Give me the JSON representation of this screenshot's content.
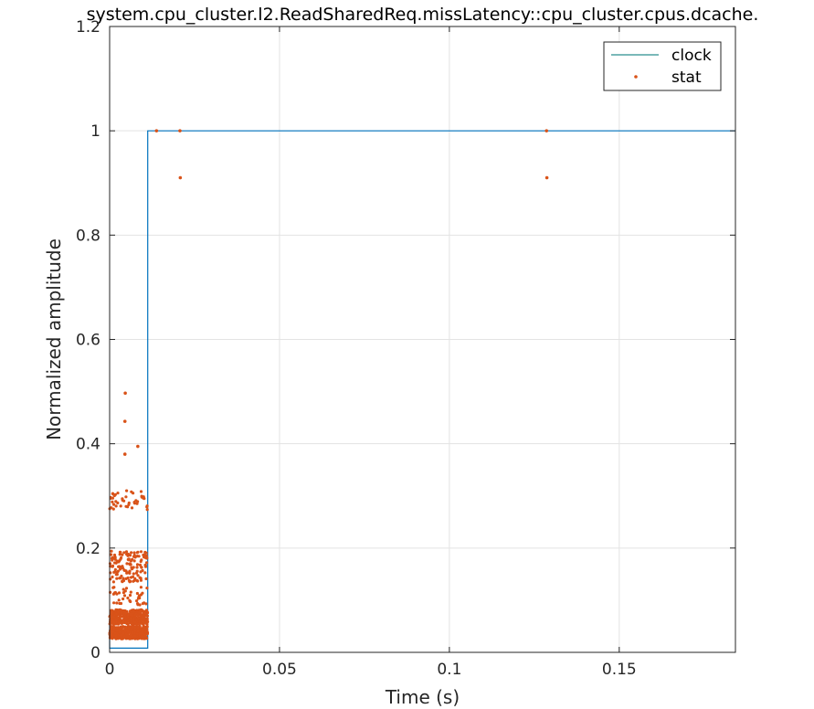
{
  "chart_data": {
    "type": "line",
    "title": "system.cpu_cluster.l2.ReadSharedReq.missLatency::cpu_cluster.cpus.dcache.",
    "xlabel": "Time (s)",
    "ylabel": "Normalized amplitude",
    "xlim": [
      0,
      0.1842
    ],
    "ylim": [
      0,
      1.2
    ],
    "x_ticks": [
      0,
      0.05,
      0.1,
      0.15
    ],
    "x_tick_labels": [
      "0",
      "0.05",
      "0.1",
      "0.15"
    ],
    "y_ticks": [
      0,
      0.2,
      0.4,
      0.6,
      0.8,
      1,
      1.2
    ],
    "y_tick_labels": [
      "0",
      "0.2",
      "0.4",
      "0.6",
      "0.8",
      "1",
      "1.2"
    ],
    "grid": true,
    "legend_position": "top-right",
    "series": [
      {
        "name": "clock",
        "kind": "step-line",
        "color": "#0072BD",
        "legend_color": "#2a8f8f",
        "x": [
          0.0,
          0.0,
          0.0112,
          0.0112,
          0.0112,
          0.0118,
          0.0118,
          0.1842
        ],
        "y": [
          0.055,
          0.008,
          0.008,
          0.045,
          1.0,
          1.0,
          1.0,
          1.0
        ]
      },
      {
        "name": "stat",
        "kind": "scatter",
        "color": "#D95319",
        "x": [
          0.0138,
          0.0207,
          0.0208,
          0.1286,
          0.1287,
          0.0046,
          0.0045,
          0.0083,
          0.0045
        ],
        "y": [
          1.0,
          1.0,
          0.91,
          1.0,
          0.91,
          0.497,
          0.443,
          0.395,
          0.38
        ],
        "dense_cluster": {
          "x_range": [
            0.0,
            0.0112
          ],
          "bands": [
            {
              "y_center": 0.038,
              "y_spread": 0.012,
              "count": 420
            },
            {
              "y_center": 0.068,
              "y_spread": 0.014,
              "count": 380
            },
            {
              "y_center": 0.165,
              "y_spread": 0.03,
              "count": 140
            },
            {
              "y_center": 0.29,
              "y_spread": 0.02,
              "count": 45
            },
            {
              "y_center": 0.11,
              "y_spread": 0.02,
              "count": 40
            }
          ]
        }
      }
    ]
  }
}
